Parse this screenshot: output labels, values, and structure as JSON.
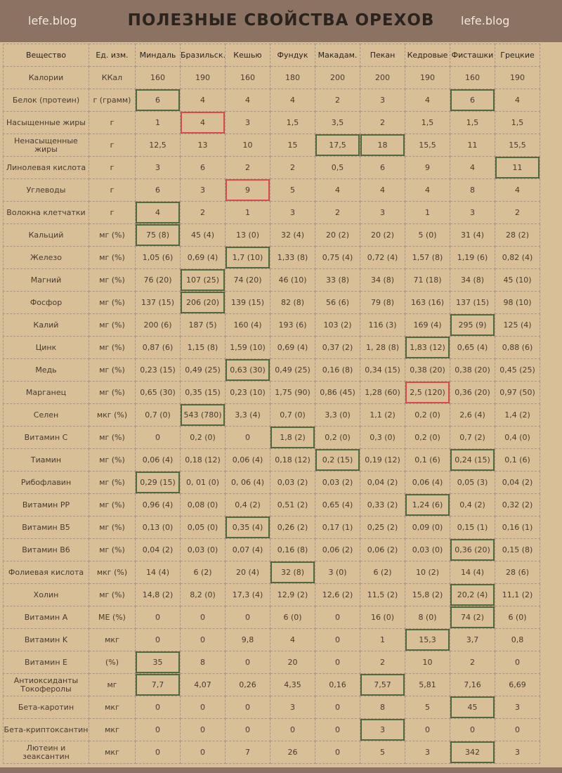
{
  "header": {
    "left": "lefe.blog",
    "title": "ПОЛЕЗНЫЕ СВОЙСТВА ОРЕХОВ",
    "right": "lefe.blog"
  },
  "table": {
    "columns": [
      "Вещество",
      "Ед. изм.",
      "Миндаль",
      "Бразильск.",
      "Кешью",
      "Фундук",
      "Макадам.",
      "Пекан",
      "Кедровые",
      "Фисташки",
      "Грецкие"
    ],
    "highlight_colors": {
      "best": "#4f6b3c",
      "worst": "#d94a4a"
    },
    "rows": [
      {
        "name": "Калории",
        "unit": "ККал",
        "values": [
          "160",
          "190",
          "160",
          "180",
          "200",
          "200",
          "190",
          "160",
          "190"
        ]
      },
      {
        "name": "Белок (протеин)",
        "unit": "г (грамм)",
        "values": [
          "6",
          "4",
          "4",
          "4",
          "2",
          "3",
          "4",
          "6",
          "4"
        ],
        "best": [
          0,
          7
        ]
      },
      {
        "name": "Насыщенные жиры",
        "unit": "г",
        "values": [
          "1",
          "4",
          "3",
          "1,5",
          "3,5",
          "2",
          "1,5",
          "1,5",
          "1,5"
        ],
        "worst": [
          1
        ]
      },
      {
        "name": "Ненасыщенные жиры",
        "unit": "г",
        "values": [
          "12,5",
          "13",
          "10",
          "15",
          "17,5",
          "18",
          "15,5",
          "11",
          "15,5"
        ],
        "best": [
          4,
          5
        ]
      },
      {
        "name": "Линолевая кислота",
        "unit": "г",
        "values": [
          "3",
          "6",
          "2",
          "2",
          "0,5",
          "6",
          "9",
          "4",
          "11"
        ],
        "best": [
          8
        ]
      },
      {
        "name": "Углеводы",
        "unit": "г",
        "values": [
          "6",
          "3",
          "9",
          "5",
          "4",
          "4",
          "4",
          "8",
          "4"
        ],
        "worst": [
          2
        ]
      },
      {
        "name": "Волокна клетчатки",
        "unit": "г",
        "values": [
          "4",
          "2",
          "1",
          "3",
          "2",
          "3",
          "1",
          "3",
          "2"
        ],
        "best": [
          0
        ]
      },
      {
        "name": "Кальций",
        "unit": "мг (%)",
        "values": [
          "75 (8)",
          "45 (4)",
          "13 (0)",
          "32 (4)",
          "20 (2)",
          "20 (2)",
          "5 (0)",
          "31 (4)",
          "28 (2)"
        ],
        "best": [
          0
        ]
      },
      {
        "name": "Железо",
        "unit": "мг (%)",
        "values": [
          "1,05 (6)",
          "0,69 (4)",
          "1,7 (10)",
          "1,33 (8)",
          "0,75 (4)",
          "0,72 (4)",
          "1,57 (8)",
          "1,19 (6)",
          "0,82 (4)"
        ],
        "best": [
          2
        ]
      },
      {
        "name": "Магний",
        "unit": "мг (%)",
        "values": [
          "76 (20)",
          "107 (25)",
          "74 (20)",
          "46 (10)",
          "33 (8)",
          "34 (8)",
          "71 (18)",
          "34 (8)",
          "45 (10)"
        ],
        "best": [
          1
        ]
      },
      {
        "name": "Фосфор",
        "unit": "мг (%)",
        "values": [
          "137 (15)",
          "206 (20)",
          "139 (15)",
          "82 (8)",
          "56 (6)",
          "79 (8)",
          "163 (16)",
          "137 (15)",
          "98 (10)"
        ],
        "best": [
          1
        ]
      },
      {
        "name": "Калий",
        "unit": "мг (%)",
        "values": [
          "200 (6)",
          "187 (5)",
          "160 (4)",
          "193 (6)",
          "103 (2)",
          "116 (3)",
          "169 (4)",
          "295 (9)",
          "125 (4)"
        ],
        "best": [
          7
        ]
      },
      {
        "name": "Цинк",
        "unit": "мг (%)",
        "values": [
          "0,87 (6)",
          "1,15 (8)",
          "1,59 (10)",
          "0,69 (4)",
          "0,37 (2)",
          "1, 28 (8)",
          "1,83 (12)",
          "0,65 (4)",
          "0,88 (6)"
        ],
        "best": [
          6
        ]
      },
      {
        "name": "Медь",
        "unit": "мг (%)",
        "values": [
          "0,23 (15)",
          "0,49 (25)",
          "0,63 (30)",
          "0,49 (25)",
          "0,16 (8)",
          "0,34 (15)",
          "0,38 (20)",
          "0,38 (20)",
          "0,45 (25)"
        ],
        "best": [
          2
        ]
      },
      {
        "name": "Марганец",
        "unit": "мг (%)",
        "values": [
          "0,65 (30)",
          "0,35 (15)",
          "0,23 (10)",
          "1,75 (90)",
          "0,86 (45)",
          "1,28 (60)",
          "2,5 (120)",
          "0,36 (20)",
          "0,97 (50)"
        ],
        "worst": [
          6
        ]
      },
      {
        "name": "Селен",
        "unit": "мкг (%)",
        "values": [
          "0,7 (0)",
          "543 (780)",
          "3,3 (4)",
          "0,7 (0)",
          "3,3 (0)",
          "1,1 (2)",
          "0,2 (0)",
          "2,6 (4)",
          "1,4 (2)"
        ],
        "best": [
          1
        ]
      },
      {
        "name": "Витамин C",
        "unit": "мг (%)",
        "values": [
          "0",
          "0,2 (0)",
          "0",
          "1,8 (2)",
          "0,2 (0)",
          "0,3 (0)",
          "0,2 (0)",
          "0,7 (2)",
          "0,4 (0)"
        ],
        "best": [
          3
        ]
      },
      {
        "name": "Тиамин",
        "unit": "мг (%)",
        "values": [
          "0,06 (4)",
          "0,18 (12)",
          "0,06 (4)",
          "0,18 (12)",
          "0,2 (15)",
          "0,19 (12)",
          "0,1 (6)",
          "0,24 (15)",
          "0,1 (6)"
        ],
        "best": [
          4,
          7
        ]
      },
      {
        "name": "Рибофлавин",
        "unit": "мг (%)",
        "values": [
          "0,29 (15)",
          "0, 01 (0)",
          "0, 06 (4)",
          "0,03 (2)",
          "0,03 (2)",
          "0,04 (2)",
          "0,06 (4)",
          "0,05 (3)",
          "0,04 (2)"
        ],
        "best": [
          0
        ]
      },
      {
        "name": "Витамин PP",
        "unit": "мг (%)",
        "values": [
          "0,96 (4)",
          "0,08 (0)",
          "0,4 (2)",
          "0,51 (2)",
          "0,65 (4)",
          "0,33 (2)",
          "1,24 (6)",
          "0,4 (2)",
          "0,32 (2)"
        ],
        "best": [
          6
        ]
      },
      {
        "name": "Витамин B5",
        "unit": "мг (%)",
        "values": [
          "0,13 (0)",
          "0,05 (0)",
          "0,35 (4)",
          "0,26 (2)",
          "0,17 (1)",
          "0,25 (2)",
          "0,09 (0)",
          "0,15 (1)",
          "0,16 (1)"
        ],
        "best": [
          2
        ]
      },
      {
        "name": "Витамин B6",
        "unit": "мг (%)",
        "values": [
          "0,04 (2)",
          "0,03 (0)",
          "0,07 (4)",
          "0,16 (8)",
          "0,06 (2)",
          "0,06 (2)",
          "0,03 (0)",
          "0,36 (20)",
          "0,15 (8)"
        ],
        "best": [
          7
        ]
      },
      {
        "name": "Фолиевая кислота",
        "unit": "мкг (%)",
        "values": [
          "14 (4)",
          "6 (2)",
          "20 (4)",
          "32 (8)",
          "3 (0)",
          "6 (2)",
          "10 (2)",
          "14 (4)",
          "28 (6)"
        ],
        "best": [
          3
        ]
      },
      {
        "name": "Холин",
        "unit": "мг (%)",
        "values": [
          "14,8 (2)",
          "8,2 (0)",
          "17,3 (4)",
          "12,9 (2)",
          "12,6 (2)",
          "11,5 (2)",
          "15,8 (2)",
          "20,2 (4)",
          "11,1 (2)"
        ],
        "best": [
          7
        ]
      },
      {
        "name": "Витамин A",
        "unit": "МЕ (%)",
        "values": [
          "0",
          "0",
          "0",
          "6 (0)",
          "0",
          "16 (0)",
          "8 (0)",
          "74 (2)",
          "6 (0)"
        ],
        "best": [
          7
        ]
      },
      {
        "name": "Витамин K",
        "unit": "мкг",
        "values": [
          "0",
          "0",
          "9,8",
          "4",
          "0",
          "1",
          "15,3",
          "3,7",
          "0,8"
        ],
        "best": [
          6
        ]
      },
      {
        "name": "Витамин E",
        "unit": "(%)",
        "values": [
          "35",
          "8",
          "0",
          "20",
          "0",
          "2",
          "10",
          "2",
          "0"
        ],
        "best": [
          0
        ]
      },
      {
        "name": "Антиоксиданты Токоферолы",
        "unit": "мг",
        "values": [
          "7,7",
          "4,07",
          "0,26",
          "4,35",
          "0,16",
          "7,57",
          "5,81",
          "7,16",
          "6,69"
        ],
        "best": [
          0,
          5
        ]
      },
      {
        "name": "Бета-каротин",
        "unit": "мкг",
        "values": [
          "0",
          "0",
          "0",
          "3",
          "0",
          "8",
          "5",
          "45",
          "3"
        ],
        "best": [
          7
        ]
      },
      {
        "name": "Бета-криптоксантин",
        "unit": "мкг",
        "values": [
          "0",
          "0",
          "0",
          "0",
          "0",
          "3",
          "0",
          "0",
          "0"
        ],
        "best": [
          5
        ]
      },
      {
        "name": "Лютеин и зеаксантин",
        "unit": "мкг",
        "values": [
          "0",
          "0",
          "7",
          "26",
          "0",
          "5",
          "3",
          "342",
          "3"
        ],
        "best": [
          7
        ]
      }
    ]
  }
}
